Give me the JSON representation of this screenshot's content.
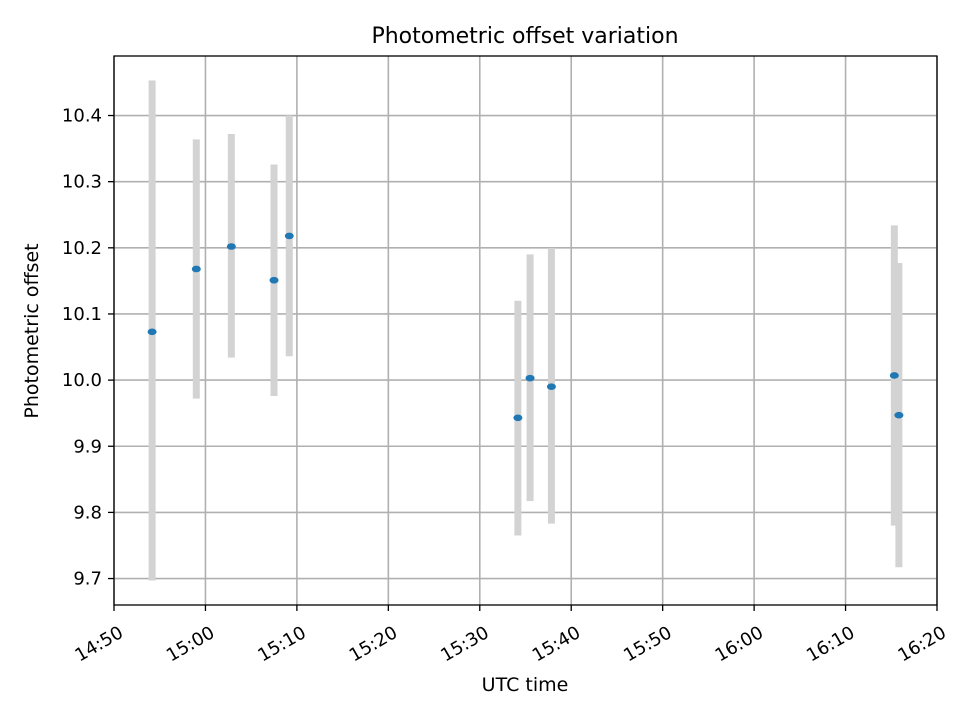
{
  "chart_data": {
    "type": "scatter",
    "title": "Photometric offset variation",
    "xlabel": "UTC time",
    "ylabel": "Photometric offset",
    "xlim": [
      "14:50",
      "16:20"
    ],
    "ylim": [
      9.66,
      10.49
    ],
    "x_ticks": [
      "14:50",
      "15:00",
      "15:10",
      "15:20",
      "15:30",
      "15:40",
      "15:50",
      "16:00",
      "16:10",
      "16:20"
    ],
    "y_ticks": [
      "9.7",
      "9.8",
      "9.9",
      "10.0",
      "10.1",
      "10.2",
      "10.3",
      "10.4"
    ],
    "grid": true,
    "point_color": "#1f77b4",
    "errorbar_color": "#d3d3d3",
    "points": [
      {
        "x": "14:54:10",
        "y": 10.073,
        "ylow": 9.697,
        "yhigh": 10.453
      },
      {
        "x": "14:59:00",
        "y": 10.168,
        "ylow": 9.972,
        "yhigh": 10.364
      },
      {
        "x": "15:02:50",
        "y": 10.202,
        "ylow": 10.034,
        "yhigh": 10.372
      },
      {
        "x": "15:07:30",
        "y": 10.151,
        "ylow": 9.976,
        "yhigh": 10.326
      },
      {
        "x": "15:09:10",
        "y": 10.218,
        "ylow": 10.036,
        "yhigh": 10.4
      },
      {
        "x": "15:34:10",
        "y": 9.943,
        "ylow": 9.765,
        "yhigh": 10.12
      },
      {
        "x": "15:35:30",
        "y": 10.003,
        "ylow": 9.817,
        "yhigh": 10.19
      },
      {
        "x": "15:37:50",
        "y": 9.99,
        "ylow": 9.783,
        "yhigh": 10.2
      },
      {
        "x": "16:15:20",
        "y": 10.007,
        "ylow": 9.78,
        "yhigh": 10.234
      },
      {
        "x": "16:15:50",
        "y": 9.947,
        "ylow": 9.717,
        "yhigh": 10.177
      }
    ]
  }
}
